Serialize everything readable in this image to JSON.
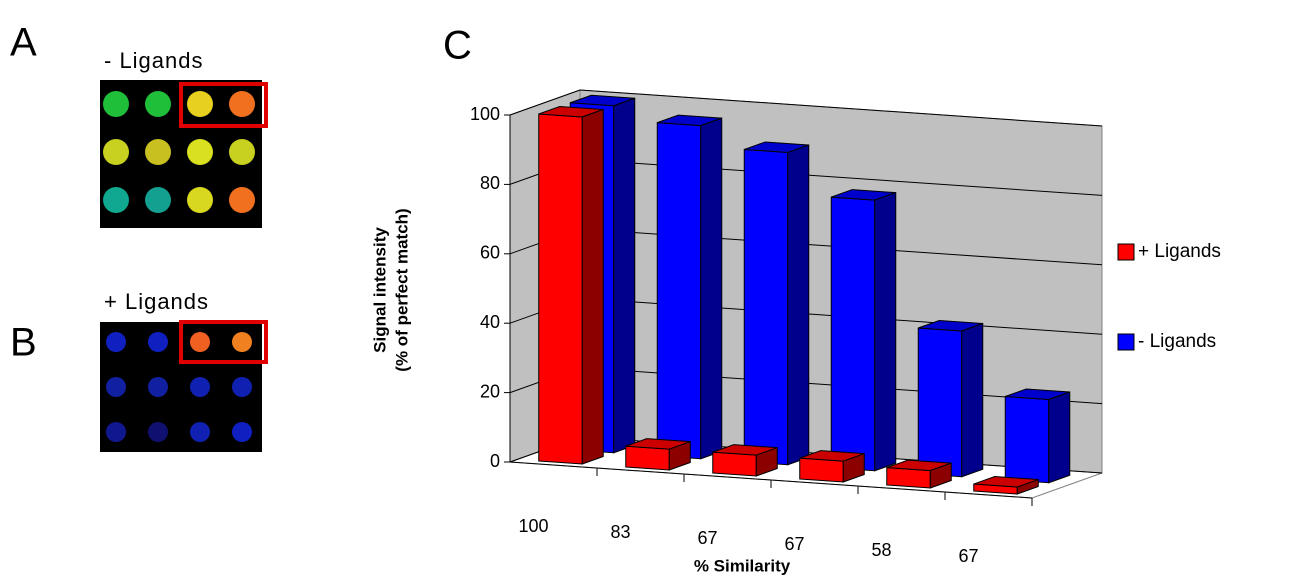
{
  "figure": {
    "panels": [
      {
        "letter": "A",
        "label": "- Ligands"
      },
      {
        "letter": "B",
        "label": "+ Ligands"
      },
      {
        "letter": "C"
      }
    ]
  },
  "chart_data": {
    "type": "bar3d",
    "ylabel": [
      "Signal intensity",
      "(% of perfect match)"
    ],
    "xlabel": "% Similarity",
    "categories": [
      "100",
      "83",
      "67",
      "67",
      "58",
      "67"
    ],
    "series": [
      {
        "name": "+ Ligands",
        "color": "#ff0000",
        "values": [
          100,
          6,
          6,
          6,
          5,
          2
        ]
      },
      {
        "name": "- Ligands",
        "color": "#0000ff",
        "values": [
          100,
          96,
          90,
          78,
          42,
          24
        ]
      }
    ],
    "ylim": [
      0,
      100
    ],
    "yticks": [
      0,
      20,
      40,
      60,
      80,
      100
    ],
    "grid": true,
    "legend": "right"
  }
}
